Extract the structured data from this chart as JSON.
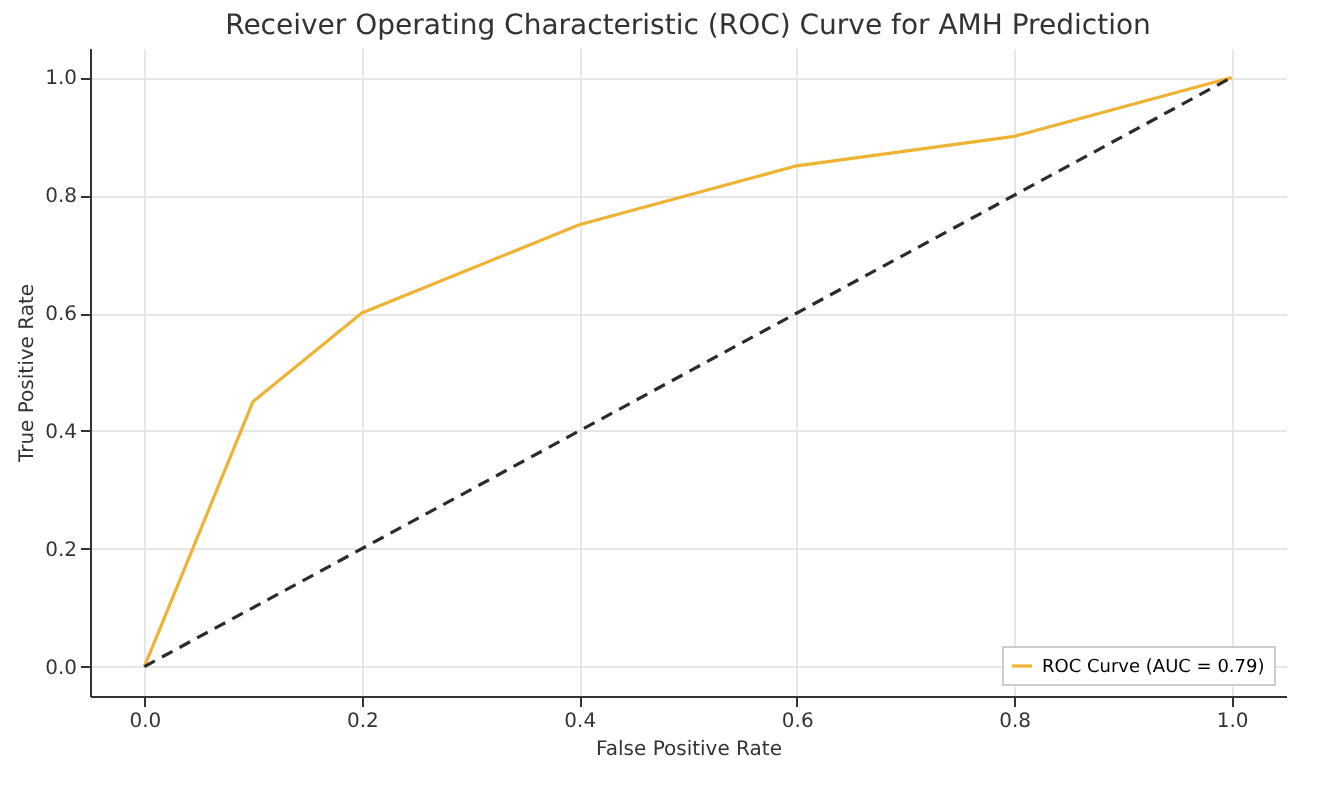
{
  "chart_data": {
    "type": "line",
    "title": "Receiver Operating Characteristic (ROC) Curve for AMH Prediction",
    "xlabel": "False Positive Rate",
    "ylabel": "True Positive Rate",
    "series": [
      {
        "name": "ROC Curve (AUC = 0.79)",
        "color": "#f0b232",
        "x": [
          0,
          0.1,
          0.2,
          0.4,
          0.6,
          0.8,
          1
        ],
        "values": [
          0,
          0.45,
          0.6,
          0.75,
          0.85,
          0.9,
          1
        ],
        "line_style": "solid"
      },
      {
        "color": "#2b2b2b",
        "x": [
          0,
          1
        ],
        "values": [
          0,
          1
        ],
        "line_style": "dashed"
      }
    ],
    "xlim": [
      -0.05,
      1.05
    ],
    "ylim": [
      -0.05,
      1.05
    ],
    "xticks": [
      {
        "value": 0,
        "label": "0.0"
      },
      {
        "value": 0.2,
        "label": "0.2"
      },
      {
        "value": 0.4,
        "label": "0.4"
      },
      {
        "value": 0.6,
        "label": "0.6"
      },
      {
        "value": 0.8,
        "label": "0.8"
      },
      {
        "value": 1,
        "label": "1.0"
      }
    ],
    "yticks": [
      {
        "value": 0,
        "label": "0.0"
      },
      {
        "value": 0.2,
        "label": "0.2"
      },
      {
        "value": 0.4,
        "label": "0.4"
      },
      {
        "value": 0.6,
        "label": "0.6"
      },
      {
        "value": 0.8,
        "label": "0.8"
      },
      {
        "value": 1,
        "label": "1.0"
      }
    ],
    "grid": true,
    "legend": "bottom right"
  }
}
